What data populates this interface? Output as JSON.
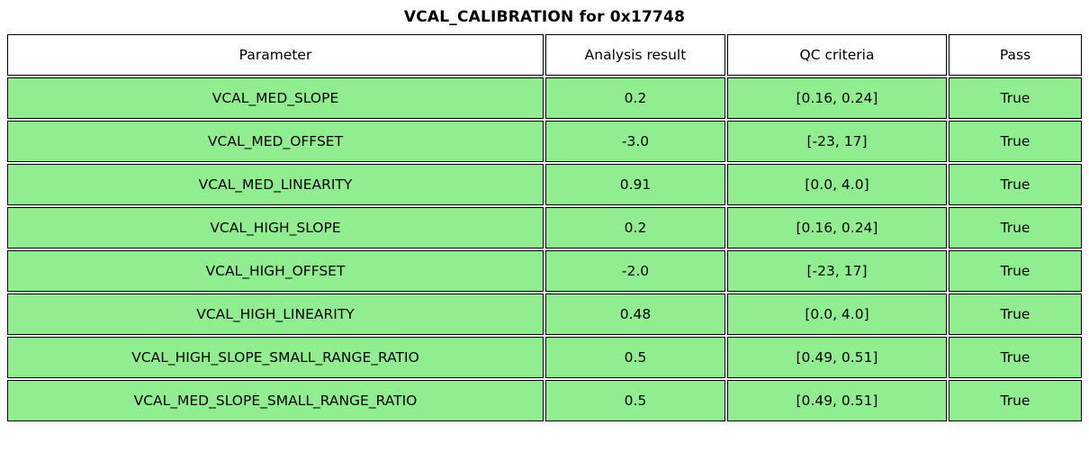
{
  "title": "VCAL_CALIBRATION for 0x17748",
  "colors": {
    "row_background": "#90EE90",
    "header_background": "#ffffff",
    "border": "#000000",
    "text": "#000000"
  },
  "chart_data": {
    "type": "table",
    "title": "VCAL_CALIBRATION for 0x17748",
    "columns": [
      "Parameter",
      "Analysis result",
      "QC criteria",
      "Pass"
    ],
    "rows": [
      {
        "parameter": "VCAL_MED_SLOPE",
        "analysis_result": "0.2",
        "qc_criteria": "[0.16, 0.24]",
        "pass": "True"
      },
      {
        "parameter": "VCAL_MED_OFFSET",
        "analysis_result": "-3.0",
        "qc_criteria": "[-23, 17]",
        "pass": "True"
      },
      {
        "parameter": "VCAL_MED_LINEARITY",
        "analysis_result": "0.91",
        "qc_criteria": "[0.0, 4.0]",
        "pass": "True"
      },
      {
        "parameter": "VCAL_HIGH_SLOPE",
        "analysis_result": "0.2",
        "qc_criteria": "[0.16, 0.24]",
        "pass": "True"
      },
      {
        "parameter": "VCAL_HIGH_OFFSET",
        "analysis_result": "-2.0",
        "qc_criteria": "[-23, 17]",
        "pass": "True"
      },
      {
        "parameter": "VCAL_HIGH_LINEARITY",
        "analysis_result": "0.48",
        "qc_criteria": "[0.0, 4.0]",
        "pass": "True"
      },
      {
        "parameter": "VCAL_HIGH_SLOPE_SMALL_RANGE_RATIO",
        "analysis_result": "0.5",
        "qc_criteria": "[0.49, 0.51]",
        "pass": "True"
      },
      {
        "parameter": "VCAL_MED_SLOPE_SMALL_RANGE_RATIO",
        "analysis_result": "0.5",
        "qc_criteria": "[0.49, 0.51]",
        "pass": "True"
      }
    ]
  }
}
